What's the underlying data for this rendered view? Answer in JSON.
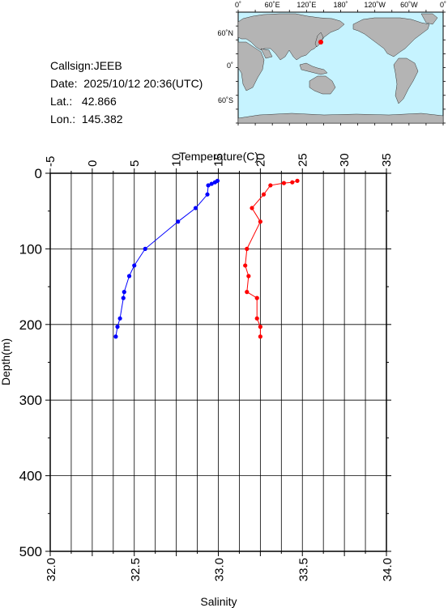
{
  "station": {
    "callsign_label": "Callsign:",
    "callsign": "JEEB",
    "date_label": "Date:",
    "date": "2025/10/12 20:36(UTC)",
    "lat_label": "Lat.:",
    "lat": "42.866",
    "lon_label": "Lon.:",
    "lon": "145.382"
  },
  "map": {
    "top_labels": [
      "0˚",
      "60˚E",
      "120˚E",
      "180˚",
      "120˚W",
      "60˚W",
      "0˚"
    ],
    "left_labels": [
      "60˚N",
      "0˚",
      "60˚S"
    ],
    "ocean_color": "#c6f3ff",
    "land_color": "#b4b4b4",
    "marker_color": "#ff0000"
  },
  "chart_data": {
    "type": "line",
    "title": "",
    "xlabel_top": "Temperature(C)",
    "xlabel_bottom": "Salinity",
    "ylabel": "Depth(m)",
    "ylim": [
      0,
      500
    ],
    "y_inverted": true,
    "y_ticks": [
      0,
      100,
      200,
      300,
      400,
      500
    ],
    "temperature_xlim": [
      -5,
      35
    ],
    "temperature_ticks": [
      -5,
      0,
      5,
      10,
      15,
      20,
      25,
      30,
      35
    ],
    "salinity_xlim": [
      32.0,
      34.0
    ],
    "salinity_ticks": [
      "32.0",
      "32.5",
      "33.0",
      "33.5",
      "34.0"
    ],
    "grid": true,
    "series": [
      {
        "quantity": "temperature",
        "axis": "top",
        "color": "#0000ff",
        "points": [
          {
            "depth": 10,
            "value": 14.9
          },
          {
            "depth": 12,
            "value": 14.6
          },
          {
            "depth": 14,
            "value": 14.2
          },
          {
            "depth": 16,
            "value": 13.8
          },
          {
            "depth": 28,
            "value": 13.7
          },
          {
            "depth": 46,
            "value": 12.3
          },
          {
            "depth": 64,
            "value": 10.2
          },
          {
            "depth": 100,
            "value": 6.3
          },
          {
            "depth": 122,
            "value": 5.0
          },
          {
            "depth": 136,
            "value": 4.4
          },
          {
            "depth": 157,
            "value": 3.8
          },
          {
            "depth": 165,
            "value": 3.7
          },
          {
            "depth": 192,
            "value": 3.3
          },
          {
            "depth": 203,
            "value": 3.0
          },
          {
            "depth": 216,
            "value": 2.8
          }
        ]
      },
      {
        "quantity": "salinity",
        "axis": "bottom",
        "color": "#ff0000",
        "points": [
          {
            "depth": 10,
            "value": 33.47
          },
          {
            "depth": 12,
            "value": 33.44
          },
          {
            "depth": 13,
            "value": 33.39
          },
          {
            "depth": 16,
            "value": 33.31
          },
          {
            "depth": 28,
            "value": 33.27
          },
          {
            "depth": 46,
            "value": 33.2
          },
          {
            "depth": 64,
            "value": 33.25
          },
          {
            "depth": 100,
            "value": 33.17
          },
          {
            "depth": 122,
            "value": 33.16
          },
          {
            "depth": 136,
            "value": 33.18
          },
          {
            "depth": 157,
            "value": 33.17
          },
          {
            "depth": 165,
            "value": 33.23
          },
          {
            "depth": 192,
            "value": 33.23
          },
          {
            "depth": 203,
            "value": 33.25
          },
          {
            "depth": 216,
            "value": 33.25
          }
        ]
      }
    ]
  }
}
